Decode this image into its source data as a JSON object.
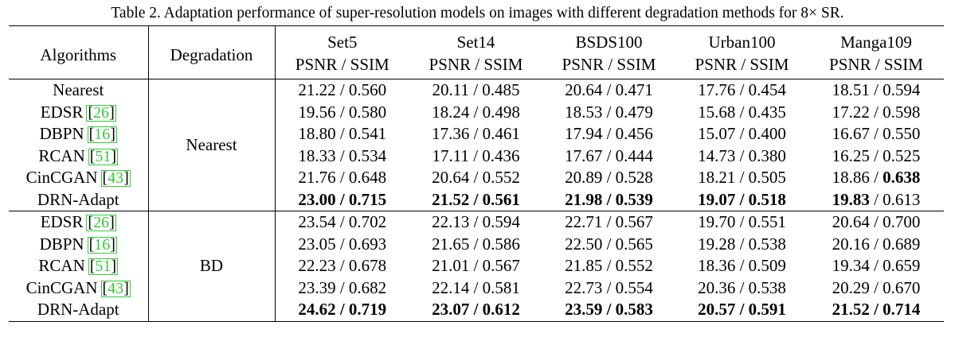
{
  "caption": "Table 2. Adaptation performance of super-resolution models on images with different degradation methods for 8× SR.",
  "header": {
    "algorithms": "Algorithms",
    "degradation": "Degradation",
    "datasets": [
      "Set5",
      "Set14",
      "BSDS100",
      "Urban100",
      "Manga109"
    ],
    "metric": "PSNR / SSIM"
  },
  "groups": [
    {
      "degradation": "Nearest",
      "rows": [
        {
          "name": "Nearest",
          "ref": "",
          "cells": [
            [
              "21.22",
              "0.560"
            ],
            [
              "20.11",
              "0.485"
            ],
            [
              "20.64",
              "0.471"
            ],
            [
              "17.76",
              "0.454"
            ],
            [
              "18.51",
              "0.594"
            ]
          ],
          "bold": [
            [
              false,
              false
            ],
            [
              false,
              false
            ],
            [
              false,
              false
            ],
            [
              false,
              false
            ],
            [
              false,
              false
            ]
          ]
        },
        {
          "name": "EDSR",
          "ref": "26",
          "cells": [
            [
              "19.56",
              "0.580"
            ],
            [
              "18.24",
              "0.498"
            ],
            [
              "18.53",
              "0.479"
            ],
            [
              "15.68",
              "0.435"
            ],
            [
              "17.22",
              "0.598"
            ]
          ],
          "bold": [
            [
              false,
              false
            ],
            [
              false,
              false
            ],
            [
              false,
              false
            ],
            [
              false,
              false
            ],
            [
              false,
              false
            ]
          ]
        },
        {
          "name": "DBPN",
          "ref": "16",
          "cells": [
            [
              "18.80",
              "0.541"
            ],
            [
              "17.36",
              "0.461"
            ],
            [
              "17.94",
              "0.456"
            ],
            [
              "15.07",
              "0.400"
            ],
            [
              "16.67",
              "0.550"
            ]
          ],
          "bold": [
            [
              false,
              false
            ],
            [
              false,
              false
            ],
            [
              false,
              false
            ],
            [
              false,
              false
            ],
            [
              false,
              false
            ]
          ]
        },
        {
          "name": "RCAN",
          "ref": "51",
          "cells": [
            [
              "18.33",
              "0.534"
            ],
            [
              "17.11",
              "0.436"
            ],
            [
              "17.67",
              "0.444"
            ],
            [
              "14.73",
              "0.380"
            ],
            [
              "16.25",
              "0.525"
            ]
          ],
          "bold": [
            [
              false,
              false
            ],
            [
              false,
              false
            ],
            [
              false,
              false
            ],
            [
              false,
              false
            ],
            [
              false,
              false
            ]
          ]
        },
        {
          "name": "CinCGAN",
          "ref": "43",
          "cells": [
            [
              "21.76",
              "0.648"
            ],
            [
              "20.64",
              "0.552"
            ],
            [
              "20.89",
              "0.528"
            ],
            [
              "18.21",
              "0.505"
            ],
            [
              "18.86",
              "0.638"
            ]
          ],
          "bold": [
            [
              false,
              false
            ],
            [
              false,
              false
            ],
            [
              false,
              false
            ],
            [
              false,
              false
            ],
            [
              false,
              true
            ]
          ]
        },
        {
          "name": "DRN-Adapt",
          "ref": "",
          "cells": [
            [
              "23.00",
              "0.715"
            ],
            [
              "21.52",
              "0.561"
            ],
            [
              "21.98",
              "0.539"
            ],
            [
              "19.07",
              "0.518"
            ],
            [
              "19.83",
              "0.613"
            ]
          ],
          "bold": [
            [
              true,
              true
            ],
            [
              true,
              true
            ],
            [
              true,
              true
            ],
            [
              true,
              true
            ],
            [
              true,
              false
            ]
          ]
        }
      ]
    },
    {
      "degradation": "BD",
      "rows": [
        {
          "name": "EDSR",
          "ref": "26",
          "cells": [
            [
              "23.54",
              "0.702"
            ],
            [
              "22.13",
              "0.594"
            ],
            [
              "22.71",
              "0.567"
            ],
            [
              "19.70",
              "0.551"
            ],
            [
              "20.64",
              "0.700"
            ]
          ],
          "bold": [
            [
              false,
              false
            ],
            [
              false,
              false
            ],
            [
              false,
              false
            ],
            [
              false,
              false
            ],
            [
              false,
              false
            ]
          ]
        },
        {
          "name": "DBPN",
          "ref": "16",
          "cells": [
            [
              "23.05",
              "0.693"
            ],
            [
              "21.65",
              "0.586"
            ],
            [
              "22.50",
              "0.565"
            ],
            [
              "19.28",
              "0.538"
            ],
            [
              "20.16",
              "0.689"
            ]
          ],
          "bold": [
            [
              false,
              false
            ],
            [
              false,
              false
            ],
            [
              false,
              false
            ],
            [
              false,
              false
            ],
            [
              false,
              false
            ]
          ]
        },
        {
          "name": "RCAN",
          "ref": "51",
          "cells": [
            [
              "22.23",
              "0.678"
            ],
            [
              "21.01",
              "0.567"
            ],
            [
              "21.85",
              "0.552"
            ],
            [
              "18.36",
              "0.509"
            ],
            [
              "19.34",
              "0.659"
            ]
          ],
          "bold": [
            [
              false,
              false
            ],
            [
              false,
              false
            ],
            [
              false,
              false
            ],
            [
              false,
              false
            ],
            [
              false,
              false
            ]
          ]
        },
        {
          "name": "CinCGAN",
          "ref": "43",
          "cells": [
            [
              "23.39",
              "0.682"
            ],
            [
              "22.14",
              "0.581"
            ],
            [
              "22.73",
              "0.554"
            ],
            [
              "20.36",
              "0.538"
            ],
            [
              "20.29",
              "0.670"
            ]
          ],
          "bold": [
            [
              false,
              false
            ],
            [
              false,
              false
            ],
            [
              false,
              false
            ],
            [
              false,
              false
            ],
            [
              false,
              false
            ]
          ]
        },
        {
          "name": "DRN-Adapt",
          "ref": "",
          "cells": [
            [
              "24.62",
              "0.719"
            ],
            [
              "23.07",
              "0.612"
            ],
            [
              "23.59",
              "0.583"
            ],
            [
              "20.57",
              "0.591"
            ],
            [
              "21.52",
              "0.714"
            ]
          ],
          "bold": [
            [
              true,
              true
            ],
            [
              true,
              true
            ],
            [
              true,
              true
            ],
            [
              true,
              true
            ],
            [
              true,
              true
            ]
          ]
        }
      ]
    }
  ]
}
